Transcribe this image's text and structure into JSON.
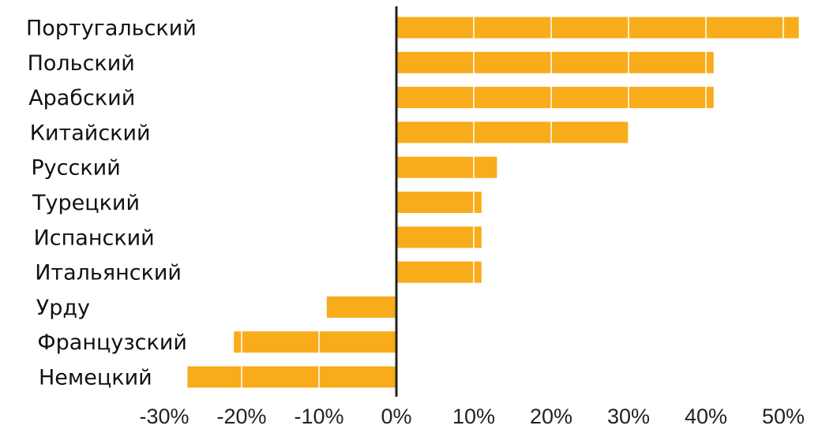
{
  "chart_data": {
    "type": "bar",
    "orientation": "horizontal",
    "categories": [
      "Португальский",
      "Польский",
      "Арабский",
      "Китайский",
      "Русский",
      "Турецкий",
      "Испанский",
      "Итальянский",
      "Урду",
      "Французский",
      "Немецкий"
    ],
    "values": [
      52,
      41,
      41,
      30,
      13,
      11,
      11,
      11,
      -9,
      -21,
      -27
    ],
    "x_ticks": [
      -30,
      -20,
      -10,
      0,
      10,
      20,
      30,
      40,
      50
    ],
    "x_tick_labels": [
      "-30%",
      "-20%",
      "-10%",
      "0%",
      "10%",
      "20%",
      "30%",
      "40%",
      "50%"
    ],
    "xlim": [
      -30,
      52
    ],
    "title": "",
    "xlabel": "",
    "ylabel": "",
    "grid": "vertical white lines inside bars",
    "legend": "none",
    "colors": {
      "bar": "#F8AC1B",
      "axis": "#222222",
      "grid": "#ffffff"
    }
  }
}
